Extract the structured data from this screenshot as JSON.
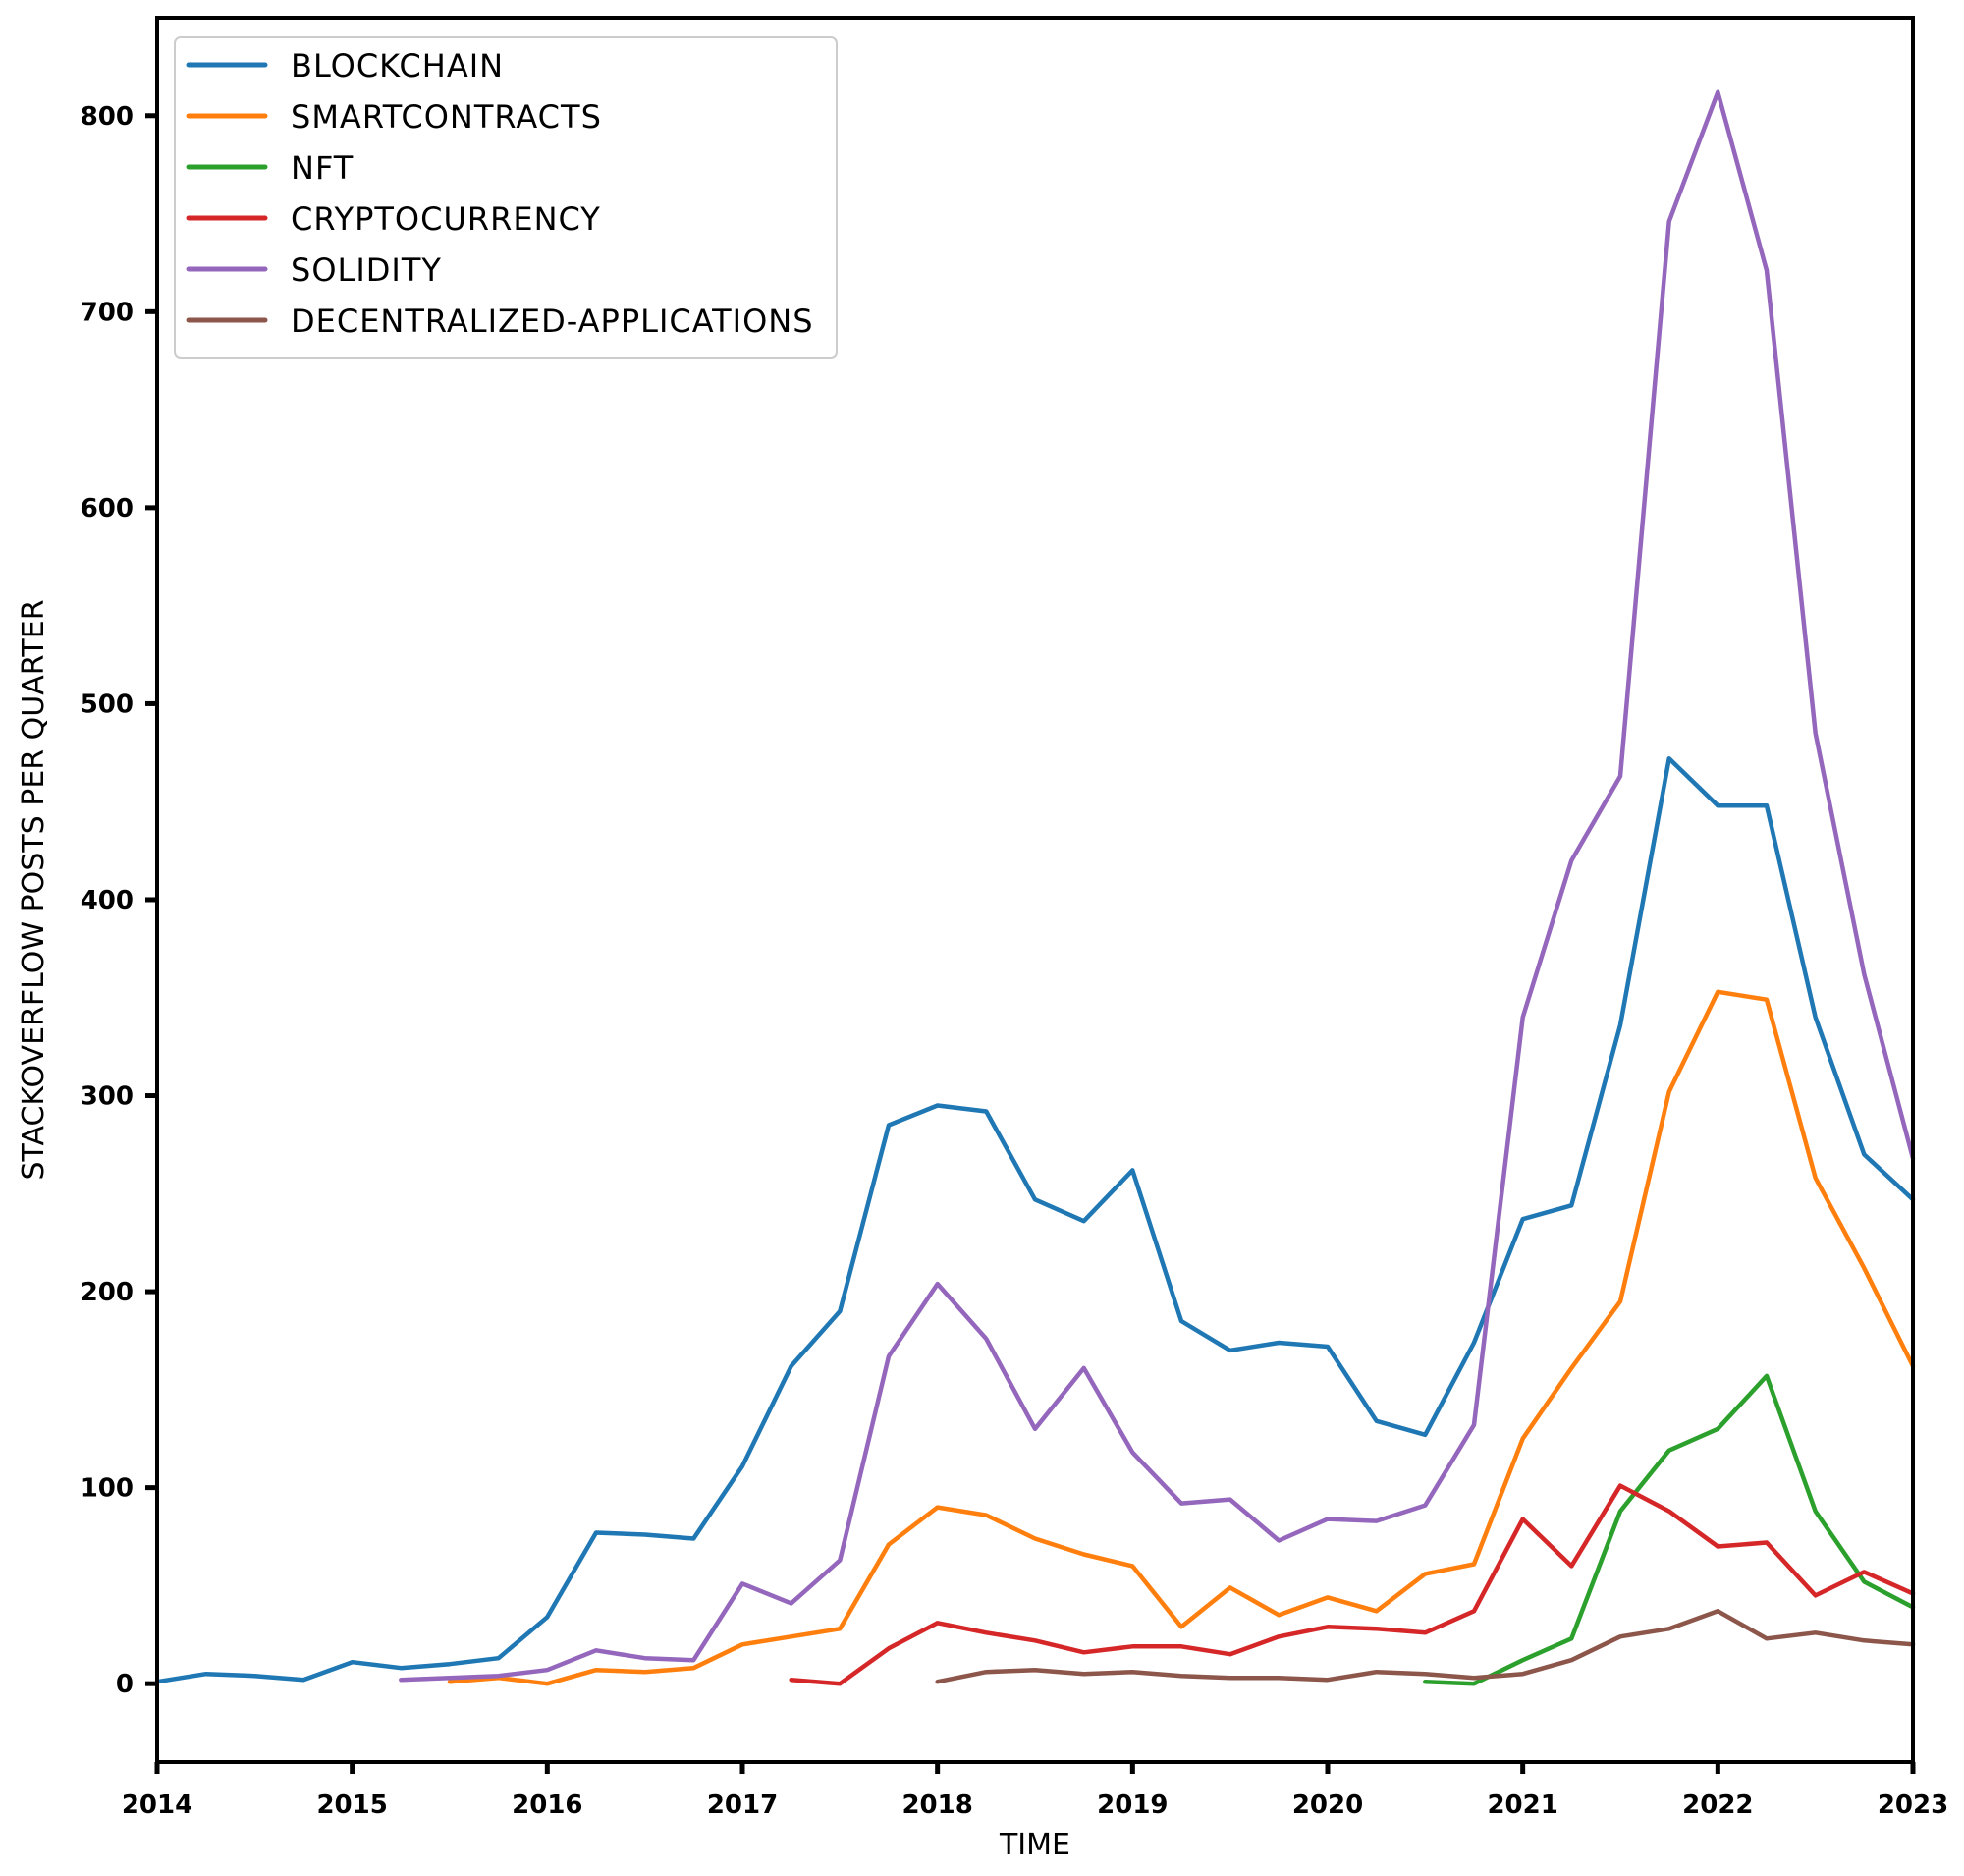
{
  "chart_data": {
    "type": "line",
    "title": "",
    "xlabel": "TIME",
    "ylabel": "STACKOVERFLOW POSTS PER QUARTER",
    "xlim": [
      2014,
      2023
    ],
    "ylim": [
      -40,
      850
    ],
    "x_ticks": [
      "2014",
      "2015",
      "2016",
      "2017",
      "2018",
      "2019",
      "2020",
      "2021",
      "2022",
      "2023"
    ],
    "y_ticks": [
      "0",
      "100",
      "200",
      "300",
      "400",
      "500",
      "600",
      "700",
      "800"
    ],
    "legend_position": "top-left",
    "series": [
      {
        "name": "BLOCKCHAIN",
        "color": "#1f77b4",
        "x": [
          2014.0,
          2014.25,
          2014.5,
          2014.75,
          2015.0,
          2015.25,
          2015.5,
          2015.75,
          2016.0,
          2016.25,
          2016.5,
          2016.75,
          2017.0,
          2017.25,
          2017.5,
          2017.75,
          2018.0,
          2018.25,
          2018.5,
          2018.75,
          2019.0,
          2019.25,
          2019.5,
          2019.75,
          2020.0,
          2020.25,
          2020.5,
          2020.75,
          2021.0,
          2021.25,
          2021.5,
          2021.75,
          2022.0,
          2022.25,
          2022.5,
          2022.75,
          2023.0
        ],
        "values": [
          1,
          5,
          4,
          2,
          11,
          8,
          10,
          13,
          34,
          77,
          76,
          74,
          111,
          162,
          190,
          285,
          295,
          292,
          247,
          236,
          262,
          185,
          170,
          174,
          172,
          134,
          127,
          174,
          237,
          244,
          336,
          472,
          448,
          448,
          340,
          270,
          247
        ]
      },
      {
        "name": "SMARTCONTRACTS",
        "color": "#ff7f0e",
        "x": [
          2015.5,
          2015.75,
          2016.0,
          2016.25,
          2016.5,
          2016.75,
          2017.0,
          2017.25,
          2017.5,
          2017.75,
          2018.0,
          2018.25,
          2018.5,
          2018.75,
          2019.0,
          2019.25,
          2019.5,
          2019.75,
          2020.0,
          2020.25,
          2020.5,
          2020.75,
          2021.0,
          2021.25,
          2021.5,
          2021.75,
          2022.0,
          2022.25,
          2022.5,
          2022.75,
          2023.0
        ],
        "values": [
          1,
          3,
          0,
          7,
          6,
          8,
          20,
          24,
          28,
          71,
          90,
          86,
          74,
          66,
          60,
          29,
          49,
          35,
          44,
          37,
          56,
          61,
          125,
          161,
          195,
          302,
          353,
          349,
          258,
          212,
          162
        ]
      },
      {
        "name": "NFT",
        "color": "#2ca02c",
        "x": [
          2020.5,
          2020.75,
          2021.0,
          2021.25,
          2021.5,
          2021.75,
          2022.0,
          2022.25,
          2022.5,
          2022.75,
          2023.0
        ],
        "values": [
          1,
          0,
          12,
          23,
          88,
          119,
          130,
          157,
          88,
          52,
          39
        ]
      },
      {
        "name": "CRYPTOCURRENCY",
        "color": "#d62728",
        "x": [
          2017.25,
          2017.5,
          2017.75,
          2018.0,
          2018.25,
          2018.5,
          2018.75,
          2019.0,
          2019.25,
          2019.5,
          2019.75,
          2020.0,
          2020.25,
          2020.5,
          2020.75,
          2021.0,
          2021.25,
          2021.5,
          2021.75,
          2022.0,
          2022.25,
          2022.5,
          2022.75,
          2023.0
        ],
        "values": [
          2,
          0,
          18,
          31,
          26,
          22,
          16,
          19,
          19,
          15,
          24,
          29,
          28,
          26,
          37,
          84,
          60,
          101,
          88,
          70,
          72,
          45,
          57,
          46
        ]
      },
      {
        "name": "SOLIDITY",
        "color": "#9467bd",
        "x": [
          2015.25,
          2015.5,
          2015.75,
          2016.0,
          2016.25,
          2016.5,
          2016.75,
          2017.0,
          2017.25,
          2017.5,
          2017.75,
          2018.0,
          2018.25,
          2018.5,
          2018.75,
          2019.0,
          2019.25,
          2019.5,
          2019.75,
          2020.0,
          2020.25,
          2020.5,
          2020.75,
          2021.0,
          2021.25,
          2021.5,
          2021.75,
          2022.0,
          2022.25,
          2022.5,
          2022.75,
          2023.0
        ],
        "values": [
          2,
          3,
          4,
          7,
          17,
          13,
          12,
          51,
          41,
          63,
          167,
          204,
          176,
          130,
          161,
          118,
          92,
          94,
          73,
          84,
          83,
          91,
          132,
          340,
          420,
          463,
          746,
          812,
          721,
          485,
          362,
          268
        ]
      },
      {
        "name": "DECENTRALIZED-APPLICATIONS",
        "color": "#8c564b",
        "x": [
          2018.0,
          2018.25,
          2018.5,
          2018.75,
          2019.0,
          2019.25,
          2019.5,
          2019.75,
          2020.0,
          2020.25,
          2020.5,
          2020.75,
          2021.0,
          2021.25,
          2021.5,
          2021.75,
          2022.0,
          2022.25,
          2022.5,
          2022.75,
          2023.0
        ],
        "values": [
          1,
          6,
          7,
          5,
          6,
          4,
          3,
          3,
          2,
          6,
          5,
          3,
          5,
          12,
          24,
          28,
          37,
          23,
          26,
          22,
          20
        ]
      }
    ]
  }
}
